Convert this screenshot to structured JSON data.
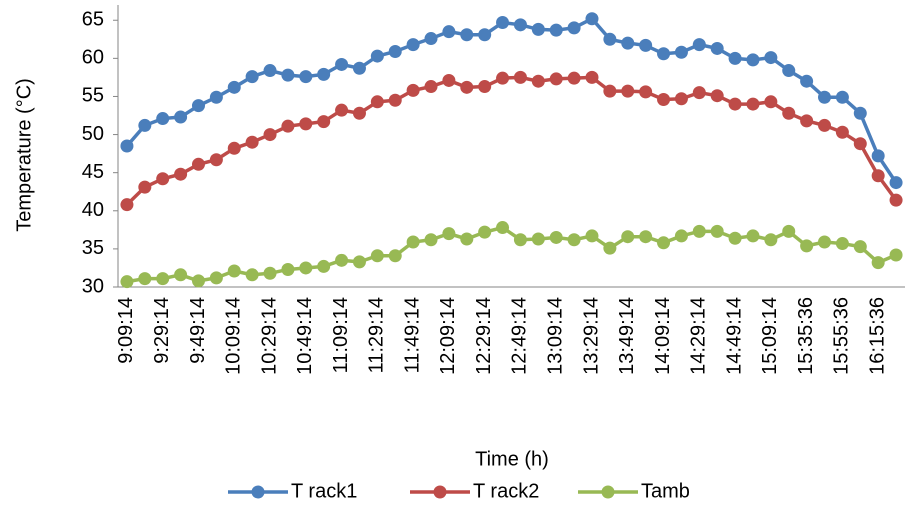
{
  "chart_data": {
    "type": "line",
    "x_label": "Time (h)",
    "y_label": "Temperature (°C)",
    "categories": [
      "9:09:14",
      null,
      "9:29:14",
      null,
      "9:49:14",
      null,
      "10:09:14",
      null,
      "10:29:14",
      null,
      "10:49:14",
      null,
      "11:09:14",
      null,
      "11:29:14",
      null,
      "11:49:14",
      null,
      "12:09:14",
      null,
      "12:29:14",
      null,
      "12:49:14",
      null,
      "13:09:14",
      null,
      "13:29:14",
      null,
      "13:49:14",
      null,
      "14:09:14",
      null,
      "14:29:14",
      null,
      "14:49:14",
      null,
      "15:09:14",
      null,
      "15:35:36",
      null,
      "15:55:36",
      null,
      "16:15:36",
      null
    ],
    "series": [
      {
        "name": "T rack1",
        "color": "#4a7ebb",
        "values": [
          48.5,
          51.2,
          52.1,
          52.3,
          53.8,
          54.9,
          56.2,
          57.6,
          58.4,
          57.8,
          57.6,
          57.9,
          59.2,
          58.7,
          60.3,
          60.9,
          61.8,
          62.6,
          63.5,
          63.1,
          63.1,
          64.7,
          64.4,
          63.8,
          63.7,
          64.0,
          65.2,
          62.5,
          62.0,
          61.7,
          60.6,
          60.8,
          61.8,
          61.3,
          60.0,
          59.8,
          60.1,
          58.4,
          57.0,
          54.9,
          54.9,
          52.8,
          47.2,
          43.7
        ]
      },
      {
        "name": "T rack2",
        "color": "#be4b48",
        "values": [
          40.8,
          43.1,
          44.2,
          44.8,
          46.1,
          46.7,
          48.2,
          49.0,
          50.0,
          51.1,
          51.4,
          51.7,
          53.2,
          52.8,
          54.3,
          54.5,
          55.8,
          56.3,
          57.1,
          56.2,
          56.3,
          57.4,
          57.5,
          57.0,
          57.3,
          57.4,
          57.5,
          55.7,
          55.7,
          55.6,
          54.6,
          54.7,
          55.5,
          55.1,
          54.0,
          54.0,
          54.3,
          52.8,
          51.8,
          51.2,
          50.3,
          48.8,
          44.6,
          41.4
        ]
      },
      {
        "name": "Tamb",
        "color": "#98b954",
        "values": [
          30.7,
          31.1,
          31.1,
          31.6,
          30.8,
          31.2,
          32.1,
          31.6,
          31.8,
          32.3,
          32.5,
          32.7,
          33.5,
          33.3,
          34.1,
          34.1,
          35.9,
          36.2,
          37.0,
          36.3,
          37.2,
          37.8,
          36.2,
          36.3,
          36.5,
          36.2,
          36.7,
          35.1,
          36.6,
          36.6,
          35.8,
          36.7,
          37.3,
          37.3,
          36.4,
          36.7,
          36.2,
          37.3,
          35.4,
          35.9,
          35.7,
          35.3,
          33.2,
          34.2
        ]
      }
    ],
    "ylim": [
      30,
      67
    ],
    "yticks": [
      30,
      35,
      40,
      45,
      50,
      55,
      60,
      65
    ],
    "grid": false,
    "legend": "bottom"
  }
}
